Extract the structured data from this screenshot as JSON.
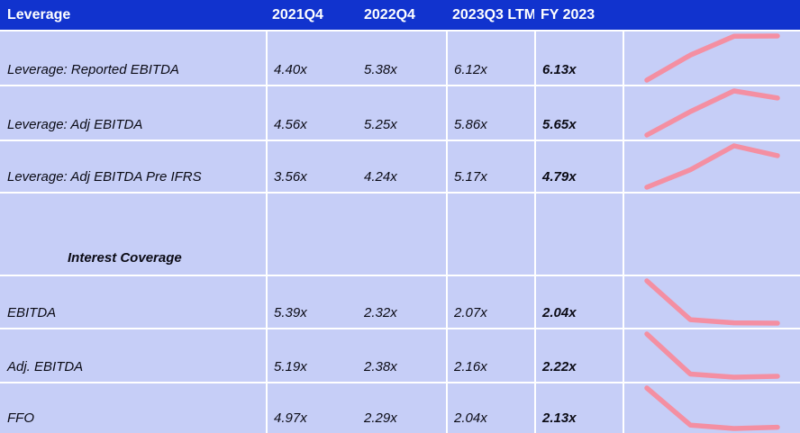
{
  "header": {
    "title": "Leverage",
    "columns": [
      "2021Q4",
      "2022Q4",
      "2023Q3 LTM",
      "FY 2023",
      ""
    ]
  },
  "rows": [
    {
      "type": "data",
      "label": "Leverage: Reported EBITDA",
      "values": [
        "4.40x",
        "5.38x",
        "6.12x",
        "6.13x"
      ]
    },
    {
      "type": "data",
      "label": "Leverage: Adj EBITDA",
      "values": [
        "4.56x",
        "5.25x",
        "5.86x",
        "5.65x"
      ]
    },
    {
      "type": "data",
      "label": "Leverage: Adj EBITDA Pre IFRS",
      "values": [
        "3.56x",
        "4.24x",
        "5.17x",
        "4.79x"
      ]
    },
    {
      "type": "section",
      "label": "Interest Coverage",
      "values": [
        "",
        "",
        "",
        ""
      ]
    },
    {
      "type": "data",
      "label": "EBITDA",
      "values": [
        "5.39x",
        "2.32x",
        "2.07x",
        "2.04x"
      ]
    },
    {
      "type": "data",
      "label": "Adj. EBITDA",
      "values": [
        "5.19x",
        "2.38x",
        "2.16x",
        "2.22x"
      ]
    },
    {
      "type": "data",
      "label": "FFO",
      "values": [
        "4.97x",
        "2.29x",
        "2.04x",
        "2.13x"
      ]
    }
  ],
  "colors": {
    "header_bg": "#1133CE",
    "header_text": "#FFFFFF",
    "cell_bg": "#C6CEF7",
    "gridline": "#FFFFFF",
    "text": "#0B0B15",
    "sparkline": "#F48FA2"
  },
  "chart_data": {
    "type": "table",
    "title": "Leverage",
    "columns": [
      "2021Q4",
      "2022Q4",
      "2023Q3 LTM",
      "FY 2023",
      "trend-sparkline"
    ],
    "rows": [
      {
        "label": "Leverage: Reported EBITDA",
        "values": [
          4.4,
          5.38,
          6.12,
          6.13
        ]
      },
      {
        "label": "Leverage: Adj EBITDA",
        "values": [
          4.56,
          5.25,
          5.86,
          5.65
        ]
      },
      {
        "label": "Leverage: Adj EBITDA Pre IFRS",
        "values": [
          3.56,
          4.24,
          5.17,
          4.79
        ]
      },
      {
        "label": "Interest Coverage",
        "values": []
      },
      {
        "label": "EBITDA",
        "values": [
          5.39,
          2.32,
          2.07,
          2.04
        ]
      },
      {
        "label": "Adj. EBITDA",
        "values": [
          5.19,
          2.38,
          2.16,
          2.22
        ]
      },
      {
        "label": "FFO",
        "values": [
          4.97,
          2.29,
          2.04,
          2.13
        ]
      }
    ],
    "sparkline_style": {
      "type": "line",
      "color": "#F48FA2",
      "scaling": "per-row min/max"
    }
  }
}
